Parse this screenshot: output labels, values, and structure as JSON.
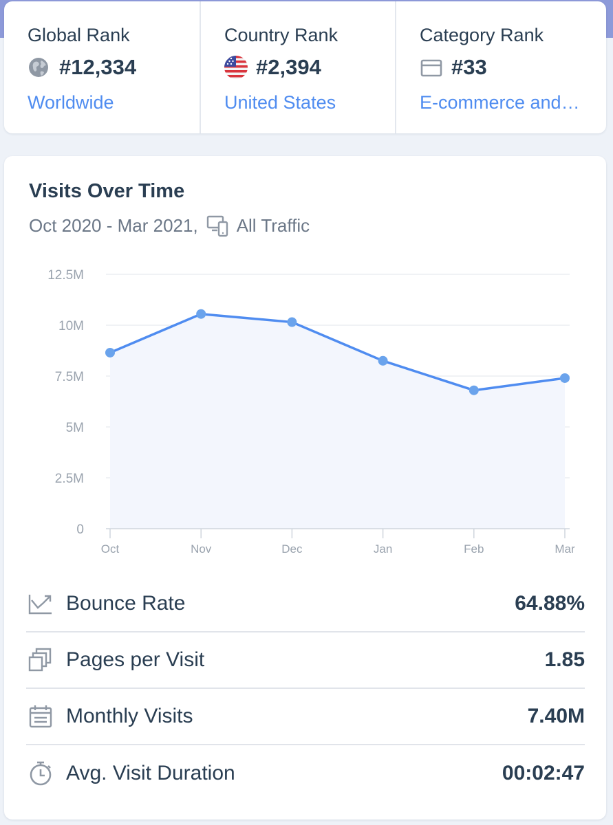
{
  "ranks": {
    "global": {
      "title": "Global Rank",
      "value": "#12,334",
      "link": "Worldwide",
      "icon": "globe-icon"
    },
    "country": {
      "title": "Country Rank",
      "value": "#2,394",
      "link": "United States",
      "icon": "us-flag-icon"
    },
    "category": {
      "title": "Category Rank",
      "value": "#33",
      "link": "E-commerce and …",
      "icon": "category-icon"
    }
  },
  "visits": {
    "title": "Visits Over Time",
    "date_range": "Oct 2020 - Mar 2021,",
    "traffic_filter": "All Traffic",
    "traffic_icon": "devices-icon"
  },
  "chart_data": {
    "type": "area",
    "title": "Visits Over Time",
    "categories": [
      "Oct",
      "Nov",
      "Dec",
      "Jan",
      "Feb",
      "Mar"
    ],
    "series": [
      {
        "name": "Visits",
        "values": [
          8.65,
          10.55,
          10.15,
          8.25,
          6.8,
          7.4
        ]
      }
    ],
    "y_unit": "M",
    "ylim": [
      0,
      12.5
    ],
    "y_ticks": [
      "0",
      "2.5M",
      "5M",
      "7.5M",
      "10M",
      "12.5M"
    ],
    "grid": true,
    "colors": {
      "line": "#4f8cf0",
      "point": "#6aa3ec",
      "fill": "#f3f6fd",
      "grid": "#e7eaef"
    }
  },
  "metrics": [
    {
      "label": "Bounce Rate",
      "value": "64.88%",
      "icon": "bounce-rate-icon"
    },
    {
      "label": "Pages per Visit",
      "value": "1.85",
      "icon": "pages-icon"
    },
    {
      "label": "Monthly Visits",
      "value": "7.40M",
      "icon": "calendar-icon"
    },
    {
      "label": "Avg. Visit Duration",
      "value": "00:02:47",
      "icon": "stopwatch-icon"
    }
  ],
  "colors": {
    "accent": "#4f8cf0",
    "text": "#2a3e52",
    "muted": "#6b7787"
  }
}
